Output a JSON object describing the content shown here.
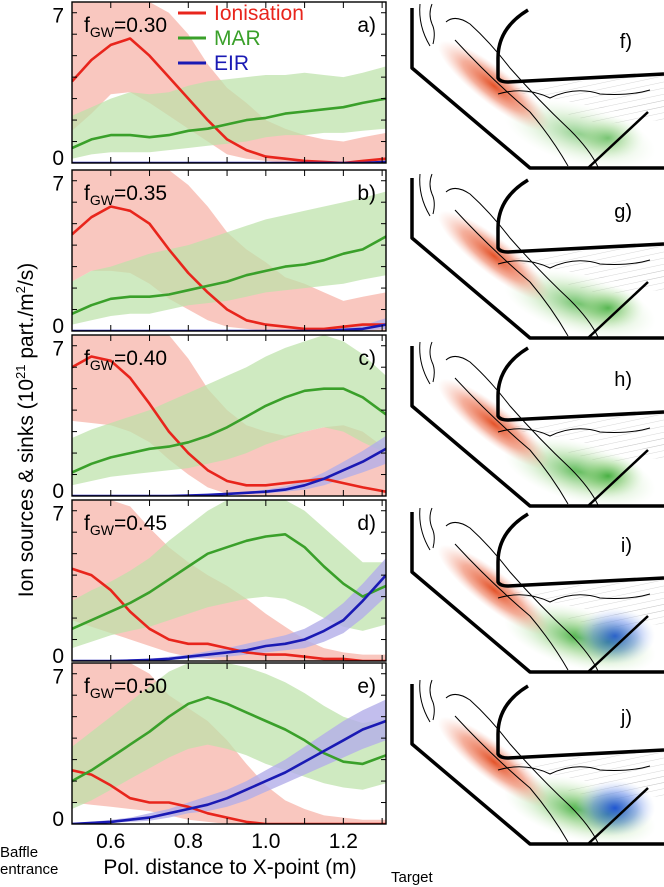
{
  "figure": {
    "ylabel_main": "Ion sources & sinks (10",
    "ylabel_exp": "21",
    "ylabel_tail": " part./m",
    "ylabel_sq": "2",
    "ylabel_end": "/s)",
    "xlabel": "Pol. distance to X-point (m)",
    "left_note_1": "Baffle",
    "left_note_2": "entrance",
    "right_note": "Target",
    "fgw_prefix": "f",
    "fgw_sub": "GW"
  },
  "legend": [
    {
      "name": "Ionisation",
      "color": "#e8251c"
    },
    {
      "name": "MAR",
      "color": "#3aa02a"
    },
    {
      "name": "EIR",
      "color": "#1a1ab4"
    }
  ],
  "chart_data": {
    "type": "line",
    "xlim": [
      0.5,
      1.31
    ],
    "ylim": [
      0,
      7.5
    ],
    "xticks": [
      "0.6",
      "0.8",
      "1.0",
      "1.2"
    ],
    "yticks": [
      "0",
      "7"
    ],
    "xlabel": "Pol. distance to X-point (m)",
    "ylabel": "Ion sources & sinks (10^21 part./m^2/s)",
    "x": [
      0.5,
      0.55,
      0.6,
      0.65,
      0.7,
      0.75,
      0.8,
      0.85,
      0.9,
      0.95,
      1.0,
      1.05,
      1.1,
      1.15,
      1.2,
      1.25,
      1.31
    ],
    "colors": {
      "Ionisation": "#e8251c",
      "MAR": "#3aa02a",
      "EIR": "#1a1ab4",
      "Ionisation_band": "#f6b1a6",
      "MAR_band": "#bde2a9",
      "EIR_band": "#b3aee8"
    },
    "panels": [
      {
        "label": "a)",
        "fgw": "=0.30",
        "series": [
          {
            "name": "Ionisation",
            "values": [
              3.8,
              4.8,
              5.5,
              5.8,
              5.0,
              4.0,
              3.0,
              2.0,
              1.1,
              0.6,
              0.3,
              0.2,
              0.1,
              0.05,
              0.0,
              0.1,
              0.2
            ],
            "upper": [
              7.5,
              7.5,
              7.5,
              7.5,
              7.5,
              7.0,
              6.0,
              4.6,
              3.5,
              2.8,
              2.0,
              1.6,
              1.3,
              1.1,
              1.0,
              1.2,
              1.4
            ],
            "lower": [
              1.5,
              2.3,
              3.2,
              3.3,
              2.8,
              2.2,
              1.6,
              1.0,
              0.4,
              0.2,
              0.1,
              0.0,
              0.0,
              0.0,
              0.0,
              0.0,
              0.0
            ]
          },
          {
            "name": "MAR",
            "values": [
              0.7,
              1.1,
              1.3,
              1.3,
              1.2,
              1.3,
              1.5,
              1.6,
              1.8,
              2.0,
              2.1,
              2.3,
              2.4,
              2.5,
              2.6,
              2.8,
              3.0
            ],
            "upper": [
              2.2,
              2.6,
              3.0,
              3.3,
              3.2,
              3.3,
              3.6,
              3.8,
              3.9,
              4.0,
              4.1,
              4.1,
              4.2,
              4.1,
              4.0,
              4.2,
              4.5
            ],
            "lower": [
              0.2,
              0.4,
              0.5,
              0.5,
              0.5,
              0.6,
              0.7,
              0.8,
              0.9,
              1.0,
              1.2,
              1.3,
              1.3,
              1.4,
              1.4,
              1.5,
              1.6
            ]
          },
          {
            "name": "EIR",
            "values": [
              0,
              0,
              0,
              0,
              0,
              0,
              0,
              0,
              0,
              0,
              0,
              0,
              0,
              0,
              0,
              0,
              0.05
            ],
            "upper": [
              0,
              0,
              0,
              0,
              0,
              0,
              0,
              0,
              0,
              0,
              0,
              0,
              0,
              0,
              0,
              0,
              0.1
            ],
            "lower": [
              0,
              0,
              0,
              0,
              0,
              0,
              0,
              0,
              0,
              0,
              0,
              0,
              0,
              0,
              0,
              0,
              0
            ]
          }
        ]
      },
      {
        "label": "b)",
        "fgw": "=0.35",
        "series": [
          {
            "name": "Ionisation",
            "values": [
              4.5,
              5.3,
              5.8,
              5.6,
              5.0,
              3.8,
              2.7,
              1.8,
              1.0,
              0.5,
              0.3,
              0.2,
              0.1,
              0.1,
              0.2,
              0.3,
              0.3
            ],
            "upper": [
              7.5,
              7.5,
              7.5,
              7.5,
              7.5,
              7.5,
              6.8,
              5.8,
              4.6,
              3.8,
              3.2,
              2.5,
              2.2,
              1.8,
              1.4,
              1.6,
              1.8
            ],
            "lower": [
              2.3,
              2.8,
              2.8,
              2.7,
              2.2,
              1.5,
              1.0,
              0.5,
              0.2,
              0.1,
              0.0,
              0.0,
              0.0,
              0.0,
              0.0,
              0.0,
              0.0
            ]
          },
          {
            "name": "MAR",
            "values": [
              0.8,
              1.2,
              1.5,
              1.6,
              1.6,
              1.7,
              1.9,
              2.1,
              2.3,
              2.6,
              2.8,
              3.0,
              3.1,
              3.3,
              3.6,
              3.8,
              4.4
            ],
            "upper": [
              2.3,
              2.8,
              3.0,
              3.3,
              3.6,
              3.8,
              4.0,
              4.3,
              4.6,
              4.9,
              5.2,
              5.4,
              5.6,
              5.8,
              6.0,
              6.2,
              6.5
            ],
            "lower": [
              0.3,
              0.5,
              0.7,
              0.8,
              0.8,
              1.0,
              1.2,
              1.3,
              1.4,
              1.6,
              1.8,
              1.9,
              2.0,
              2.1,
              2.2,
              2.4,
              2.6
            ]
          },
          {
            "name": "EIR",
            "values": [
              0,
              0,
              0,
              0,
              0,
              0,
              0,
              0,
              0,
              0,
              0,
              0,
              0,
              0,
              0.05,
              0.1,
              0.3
            ],
            "upper": [
              0,
              0,
              0,
              0,
              0,
              0,
              0,
              0,
              0,
              0,
              0,
              0,
              0.05,
              0.1,
              0.15,
              0.25,
              0.6
            ],
            "lower": [
              0,
              0,
              0,
              0,
              0,
              0,
              0,
              0,
              0,
              0,
              0,
              0,
              0,
              0,
              0,
              0,
              0.1
            ]
          }
        ]
      },
      {
        "label": "c)",
        "fgw": "=0.40",
        "series": [
          {
            "name": "Ionisation",
            "values": [
              6.0,
              6.5,
              6.3,
              5.5,
              4.3,
              3.0,
              2.0,
              1.2,
              0.7,
              0.5,
              0.5,
              0.6,
              0.7,
              0.8,
              0.6,
              0.4,
              0.2
            ],
            "upper": [
              7.5,
              7.5,
              7.5,
              7.5,
              7.5,
              7.5,
              6.4,
              5.0,
              4.0,
              3.3,
              3.0,
              2.8,
              3.0,
              3.2,
              3.3,
              3.0,
              2.2
            ],
            "lower": [
              3.5,
              3.4,
              3.3,
              3.0,
              2.5,
              1.7,
              1.0,
              0.4,
              0.1,
              0.0,
              0.0,
              0.0,
              0.0,
              0.0,
              0.0,
              0.0,
              0.0
            ]
          },
          {
            "name": "MAR",
            "values": [
              1.1,
              1.5,
              1.8,
              2.0,
              2.2,
              2.3,
              2.5,
              2.8,
              3.2,
              3.7,
              4.2,
              4.6,
              4.9,
              5.0,
              5.0,
              4.6,
              3.8
            ],
            "upper": [
              2.7,
              3.1,
              3.4,
              3.7,
              4.0,
              4.4,
              4.8,
              5.2,
              5.6,
              6.0,
              6.5,
              6.9,
              7.2,
              7.5,
              7.2,
              6.6,
              5.6
            ],
            "lower": [
              0.5,
              0.7,
              0.9,
              1.0,
              1.1,
              1.2,
              1.3,
              1.5,
              1.7,
              2.0,
              2.4,
              2.7,
              3.0,
              3.2,
              3.0,
              2.5,
              2.0
            ]
          },
          {
            "name": "EIR",
            "values": [
              0,
              0,
              0,
              0,
              0,
              0,
              0.02,
              0.05,
              0.1,
              0.15,
              0.2,
              0.3,
              0.5,
              0.8,
              1.2,
              1.6,
              2.2
            ],
            "upper": [
              0,
              0,
              0,
              0,
              0,
              0,
              0.05,
              0.1,
              0.15,
              0.2,
              0.3,
              0.45,
              0.7,
              1.1,
              1.6,
              2.1,
              2.8
            ],
            "lower": [
              0,
              0,
              0,
              0,
              0,
              0,
              0,
              0,
              0.05,
              0.1,
              0.12,
              0.2,
              0.3,
              0.5,
              0.8,
              1.1,
              1.5
            ]
          }
        ]
      },
      {
        "label": "d)",
        "fgw": "=0.45",
        "series": [
          {
            "name": "Ionisation",
            "values": [
              4.3,
              4.0,
              3.3,
              2.3,
              1.5,
              1.0,
              0.8,
              0.8,
              0.6,
              0.4,
              0.3,
              0.3,
              0.2,
              0.1,
              0.1,
              0.0,
              0.0
            ],
            "upper": [
              7.5,
              7.5,
              7.5,
              7.2,
              6.2,
              5.3,
              4.6,
              4.0,
              3.5,
              2.9,
              2.2,
              1.6,
              1.0,
              0.6,
              0.4,
              0.3,
              0.3
            ],
            "lower": [
              1.9,
              1.6,
              1.3,
              1.0,
              0.7,
              0.4,
              0.2,
              0.1,
              0.0,
              0.0,
              0.0,
              0.0,
              0.0,
              0.0,
              0.0,
              0.0,
              0.0
            ]
          },
          {
            "name": "MAR",
            "values": [
              1.5,
              1.9,
              2.3,
              2.7,
              3.2,
              3.8,
              4.4,
              5.0,
              5.3,
              5.6,
              5.8,
              5.9,
              5.3,
              4.4,
              3.6,
              3.0,
              3.5
            ],
            "upper": [
              2.8,
              3.3,
              3.7,
              4.2,
              4.8,
              5.6,
              6.3,
              7.0,
              7.5,
              7.5,
              7.5,
              7.5,
              7.0,
              6.2,
              5.4,
              4.6,
              4.6
            ],
            "lower": [
              0.6,
              0.9,
              1.2,
              1.4,
              1.6,
              1.9,
              2.2,
              2.5,
              2.7,
              2.9,
              3.0,
              2.9,
              2.5,
              2.0,
              1.6,
              1.4,
              1.7
            ]
          },
          {
            "name": "EIR",
            "values": [
              0,
              0,
              0,
              0.02,
              0.05,
              0.1,
              0.2,
              0.3,
              0.4,
              0.5,
              0.7,
              0.8,
              1.0,
              1.4,
              1.9,
              2.8,
              4.0
            ],
            "upper": [
              0,
              0,
              0,
              0.05,
              0.1,
              0.2,
              0.3,
              0.45,
              0.6,
              0.8,
              1.0,
              1.2,
              1.5,
              2.0,
              2.7,
              3.6,
              4.8
            ],
            "lower": [
              0,
              0,
              0,
              0,
              0.02,
              0.05,
              0.1,
              0.15,
              0.2,
              0.3,
              0.4,
              0.5,
              0.6,
              0.9,
              1.3,
              2.0,
              3.0
            ]
          }
        ]
      },
      {
        "label": "e)",
        "fgw": "=0.50",
        "series": [
          {
            "name": "Ionisation",
            "values": [
              2.5,
              2.3,
              1.8,
              1.2,
              1.0,
              1.0,
              0.8,
              0.5,
              0.3,
              0.1,
              0.0,
              0.0,
              0.0,
              0.0,
              0.0,
              0.0,
              0.0
            ],
            "upper": [
              7.5,
              7.5,
              7.5,
              7.5,
              7.0,
              6.0,
              5.4,
              4.8,
              3.9,
              2.8,
              1.8,
              1.1,
              0.7,
              0.4,
              0.3,
              0.2,
              0.2
            ],
            "lower": [
              1.0,
              0.9,
              0.8,
              0.7,
              0.6,
              0.4,
              0.2,
              0.1,
              0.0,
              0.0,
              0.0,
              0.0,
              0.0,
              0.0,
              0.0,
              0.0,
              0.0
            ]
          },
          {
            "name": "MAR",
            "values": [
              2.0,
              2.5,
              3.1,
              3.7,
              4.3,
              5.0,
              5.6,
              5.9,
              5.6,
              5.2,
              4.8,
              4.4,
              3.9,
              3.3,
              2.9,
              2.8,
              3.2
            ],
            "upper": [
              3.6,
              4.3,
              5.0,
              5.7,
              6.4,
              7.1,
              7.5,
              7.5,
              7.5,
              7.3,
              7.0,
              6.6,
              6.1,
              5.5,
              5.0,
              4.7,
              4.9
            ],
            "lower": [
              0.7,
              1.1,
              1.6,
              2.1,
              2.6,
              3.1,
              3.5,
              3.7,
              3.5,
              3.2,
              2.8,
              2.5,
              2.2,
              1.9,
              1.7,
              1.6,
              1.9
            ]
          },
          {
            "name": "EIR",
            "values": [
              0,
              0.05,
              0.1,
              0.2,
              0.3,
              0.5,
              0.7,
              0.9,
              1.2,
              1.6,
              2.0,
              2.4,
              2.9,
              3.4,
              3.9,
              4.4,
              4.8
            ],
            "upper": [
              0.05,
              0.1,
              0.2,
              0.3,
              0.5,
              0.7,
              1.0,
              1.3,
              1.6,
              2.0,
              2.5,
              3.0,
              3.6,
              4.2,
              4.8,
              5.3,
              5.8
            ],
            "lower": [
              0,
              0,
              0.05,
              0.1,
              0.15,
              0.3,
              0.5,
              0.6,
              0.8,
              1.1,
              1.5,
              1.9,
              2.3,
              2.7,
              3.1,
              3.5,
              3.9
            ]
          }
        ]
      }
    ]
  },
  "images": [
    {
      "label": "f)",
      "ion": 1.0,
      "mar": 0.6,
      "eir": 0.0
    },
    {
      "label": "g)",
      "ion": 1.0,
      "mar": 0.8,
      "eir": 0.0
    },
    {
      "label": "h)",
      "ion": 1.0,
      "mar": 0.9,
      "eir": 0.0
    },
    {
      "label": "i)",
      "ion": 1.0,
      "mar": 1.0,
      "eir": 0.9
    },
    {
      "label": "j)",
      "ion": 1.0,
      "mar": 1.0,
      "eir": 1.0
    }
  ]
}
